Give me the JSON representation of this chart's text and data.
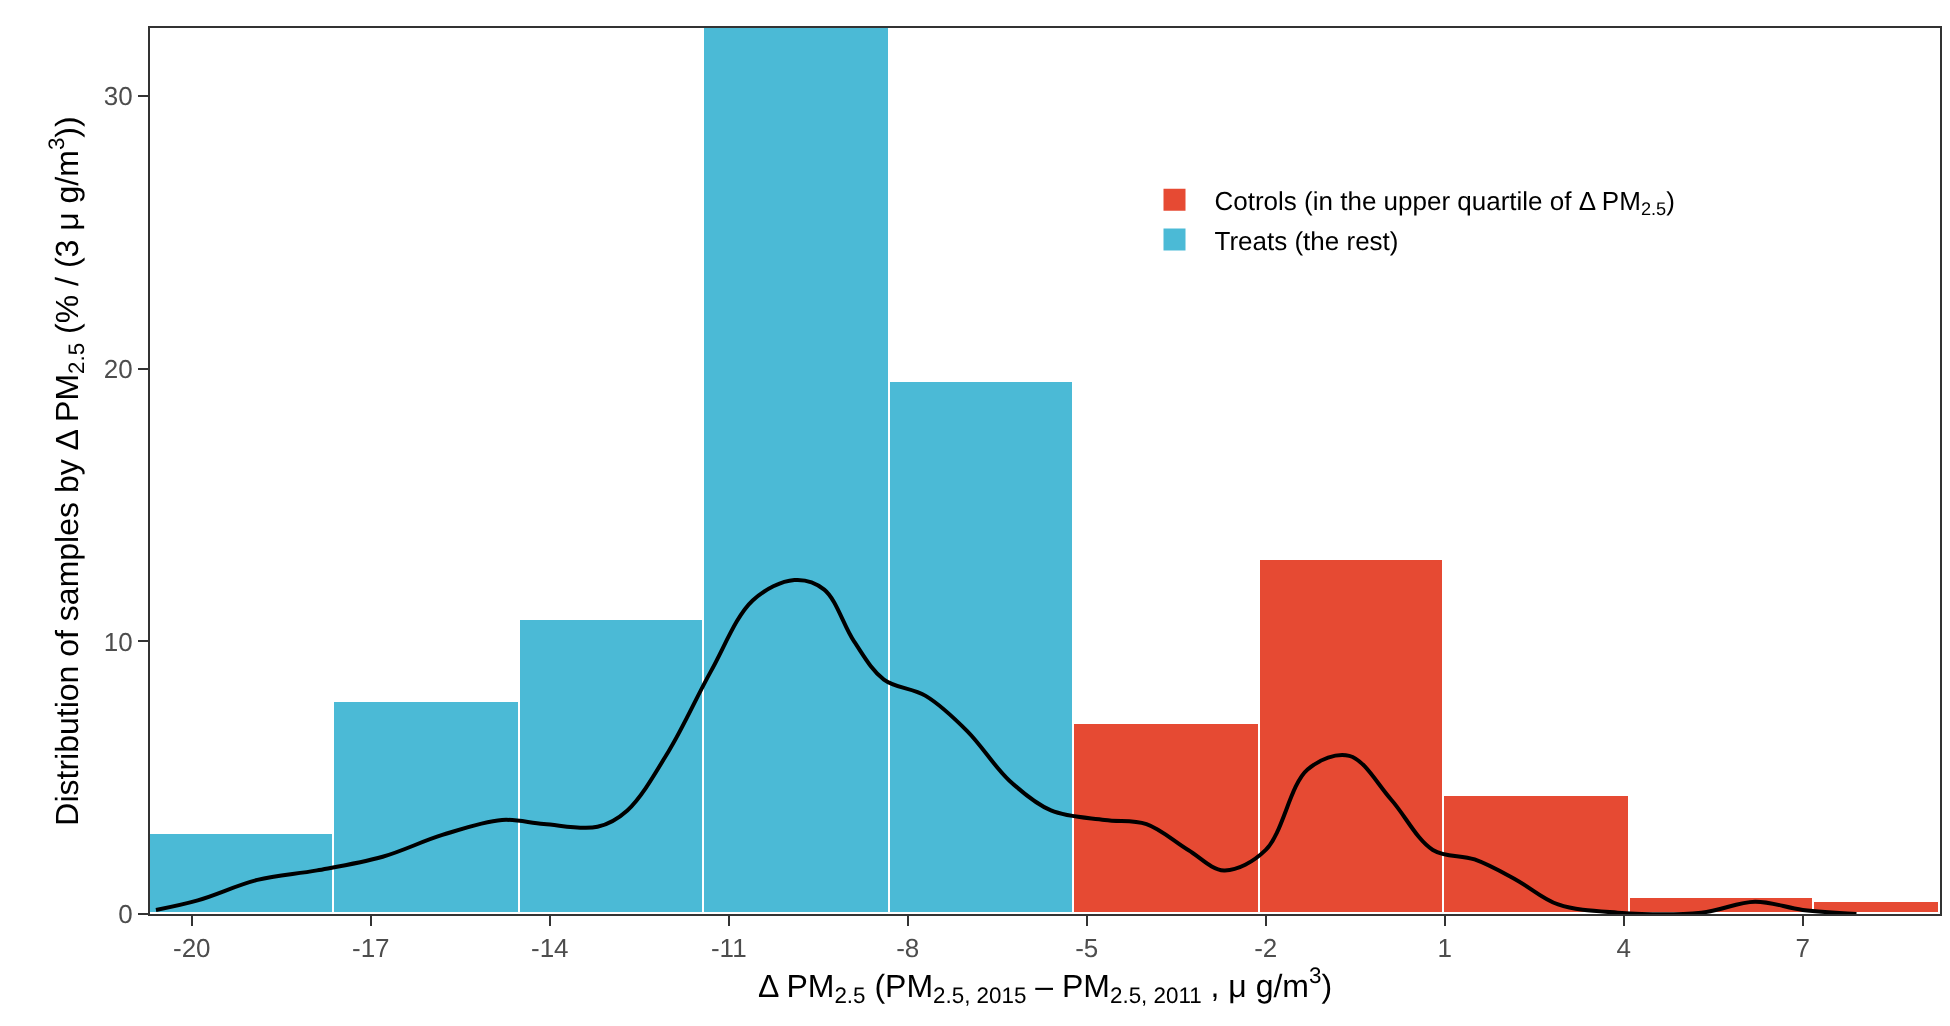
{
  "chart_data": {
    "type": "histogram",
    "xlabel": "Δ PM$_{2.5}$ (PM$_{2.5, 2015}$ – PM$_{2.5, 2011}$ , μ g/m$^{3}$)",
    "ylabel": "Distribution of samples by Δ PM$_{2.5}$ (% / (3 μ g/m$^{3}$))",
    "bins": [
      -20.7,
      -17.6,
      -14.5,
      -11.4,
      -8.3,
      -5.2,
      -2.1,
      1.0,
      4.1,
      7.2,
      9.3
    ],
    "series": [
      {
        "name": "Cotrols (in the upper quartile of Δ PM$_{2.5}$)",
        "color": "#e64a33",
        "values": [
          null,
          null,
          null,
          null,
          null,
          7.0,
          13.0,
          4.3,
          0.6,
          0.45
        ]
      },
      {
        "name": "Treats (the rest)",
        "color": "#4bbad6",
        "values": [
          2.9,
          7.8,
          10.8,
          32.5,
          19.5,
          null,
          null,
          null,
          null,
          null
        ]
      },
      {
        "type": "line",
        "color": "#000000",
        "x": [
          -20.6,
          -19.9,
          -18.9,
          -17.9,
          -16.8,
          -15.8,
          -14.8,
          -14.1,
          -13.2,
          -12.7,
          -12.0,
          -11.3,
          -10.6,
          -9.9,
          -9.4,
          -8.9,
          -8.4,
          -7.7,
          -7.0,
          -6.3,
          -5.6,
          -4.7,
          -4.0,
          -3.3,
          -2.7,
          -2.0,
          -1.3,
          -0.6,
          0.1,
          0.8,
          1.5,
          2.2,
          2.9,
          3.9,
          5.3,
          6.2,
          7.0,
          7.9
        ],
        "values": [
          0.15,
          0.5,
          1.25,
          1.6,
          2.1,
          2.9,
          3.45,
          3.3,
          3.2,
          3.8,
          6.0,
          8.9,
          11.5,
          12.25,
          11.9,
          10.0,
          8.6,
          8.0,
          6.7,
          4.9,
          3.8,
          3.45,
          3.3,
          2.35,
          1.6,
          2.35,
          5.3,
          5.8,
          4.2,
          2.35,
          2.0,
          1.25,
          0.35,
          0.05,
          0.05,
          0.45,
          0.15,
          0.0
        ]
      }
    ],
    "xlim": [
      -20.7,
      9.3
    ],
    "xticks": [
      -20,
      -17,
      -14,
      -11,
      -8,
      -5,
      -2,
      1,
      4,
      7
    ],
    "ylim": [
      0,
      32.5
    ],
    "yticks": [
      0,
      10,
      20,
      30
    ],
    "grid": false,
    "legend": "top right"
  }
}
